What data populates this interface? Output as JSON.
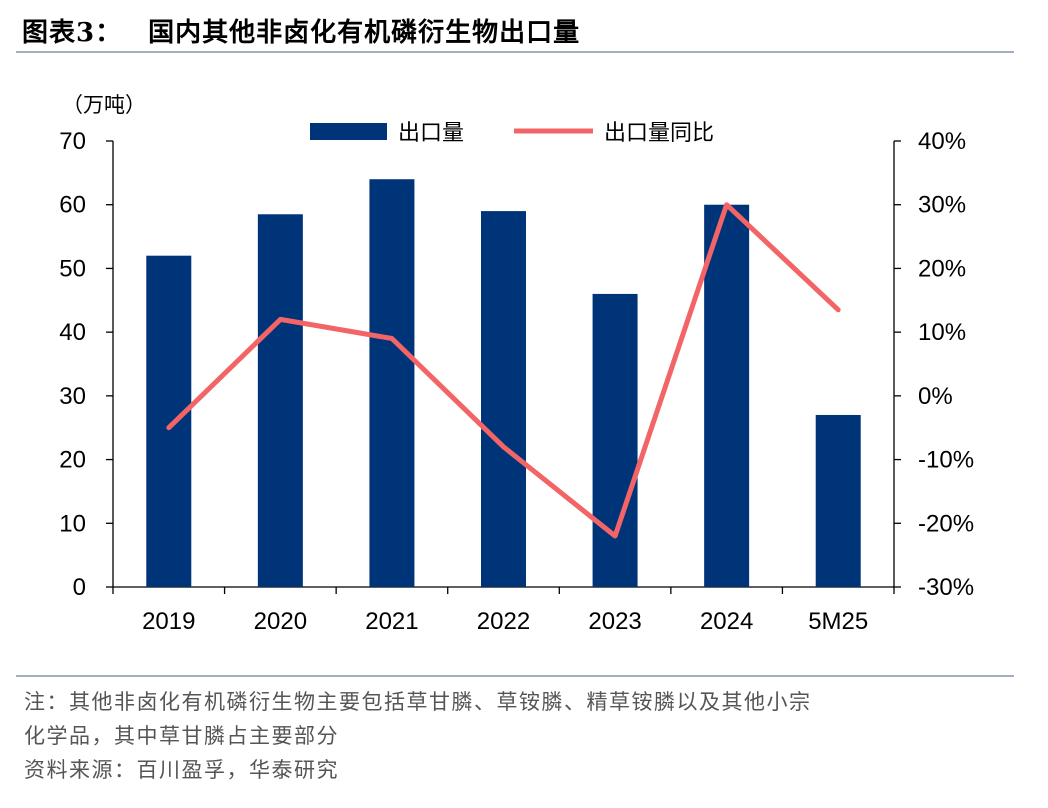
{
  "figure": {
    "label": "图表3：",
    "title": "国内其他非卤化有机磷衍生物出口量",
    "note_line1": "注：其他非卤化有机磷衍生物主要包括草甘膦、草铵膦、精草铵膦以及其他小宗",
    "note_line2": "化学品，其中草甘膦占主要部分",
    "source": "资料来源：百川盈孚，华泰研究"
  },
  "colors": {
    "bar": "#003478",
    "line": "#f26466",
    "rule": "#9fb0c4"
  },
  "chart_data": {
    "type": "bar",
    "categories": [
      "2019",
      "2020",
      "2021",
      "2022",
      "2023",
      "2024",
      "5M25"
    ],
    "left_unit": "（万吨）",
    "series": [
      {
        "name": "出口量",
        "type": "bar",
        "axis": "left",
        "values": [
          52,
          58.5,
          64,
          59,
          46,
          60,
          27
        ]
      },
      {
        "name": "出口量同比",
        "type": "line",
        "axis": "right",
        "values": [
          -5,
          12,
          9,
          -8,
          -22,
          30,
          13.5
        ]
      }
    ],
    "left_axis": {
      "min": 0,
      "max": 70,
      "step": 10,
      "ticks": [
        "0",
        "10",
        "20",
        "30",
        "40",
        "50",
        "60",
        "70"
      ]
    },
    "right_axis": {
      "min": -30,
      "max": 40,
      "step": 10,
      "ticks": [
        "-30%",
        "-20%",
        "-10%",
        "0%",
        "10%",
        "20%",
        "30%",
        "40%"
      ]
    },
    "legend_position": "top-center",
    "grid": false
  }
}
